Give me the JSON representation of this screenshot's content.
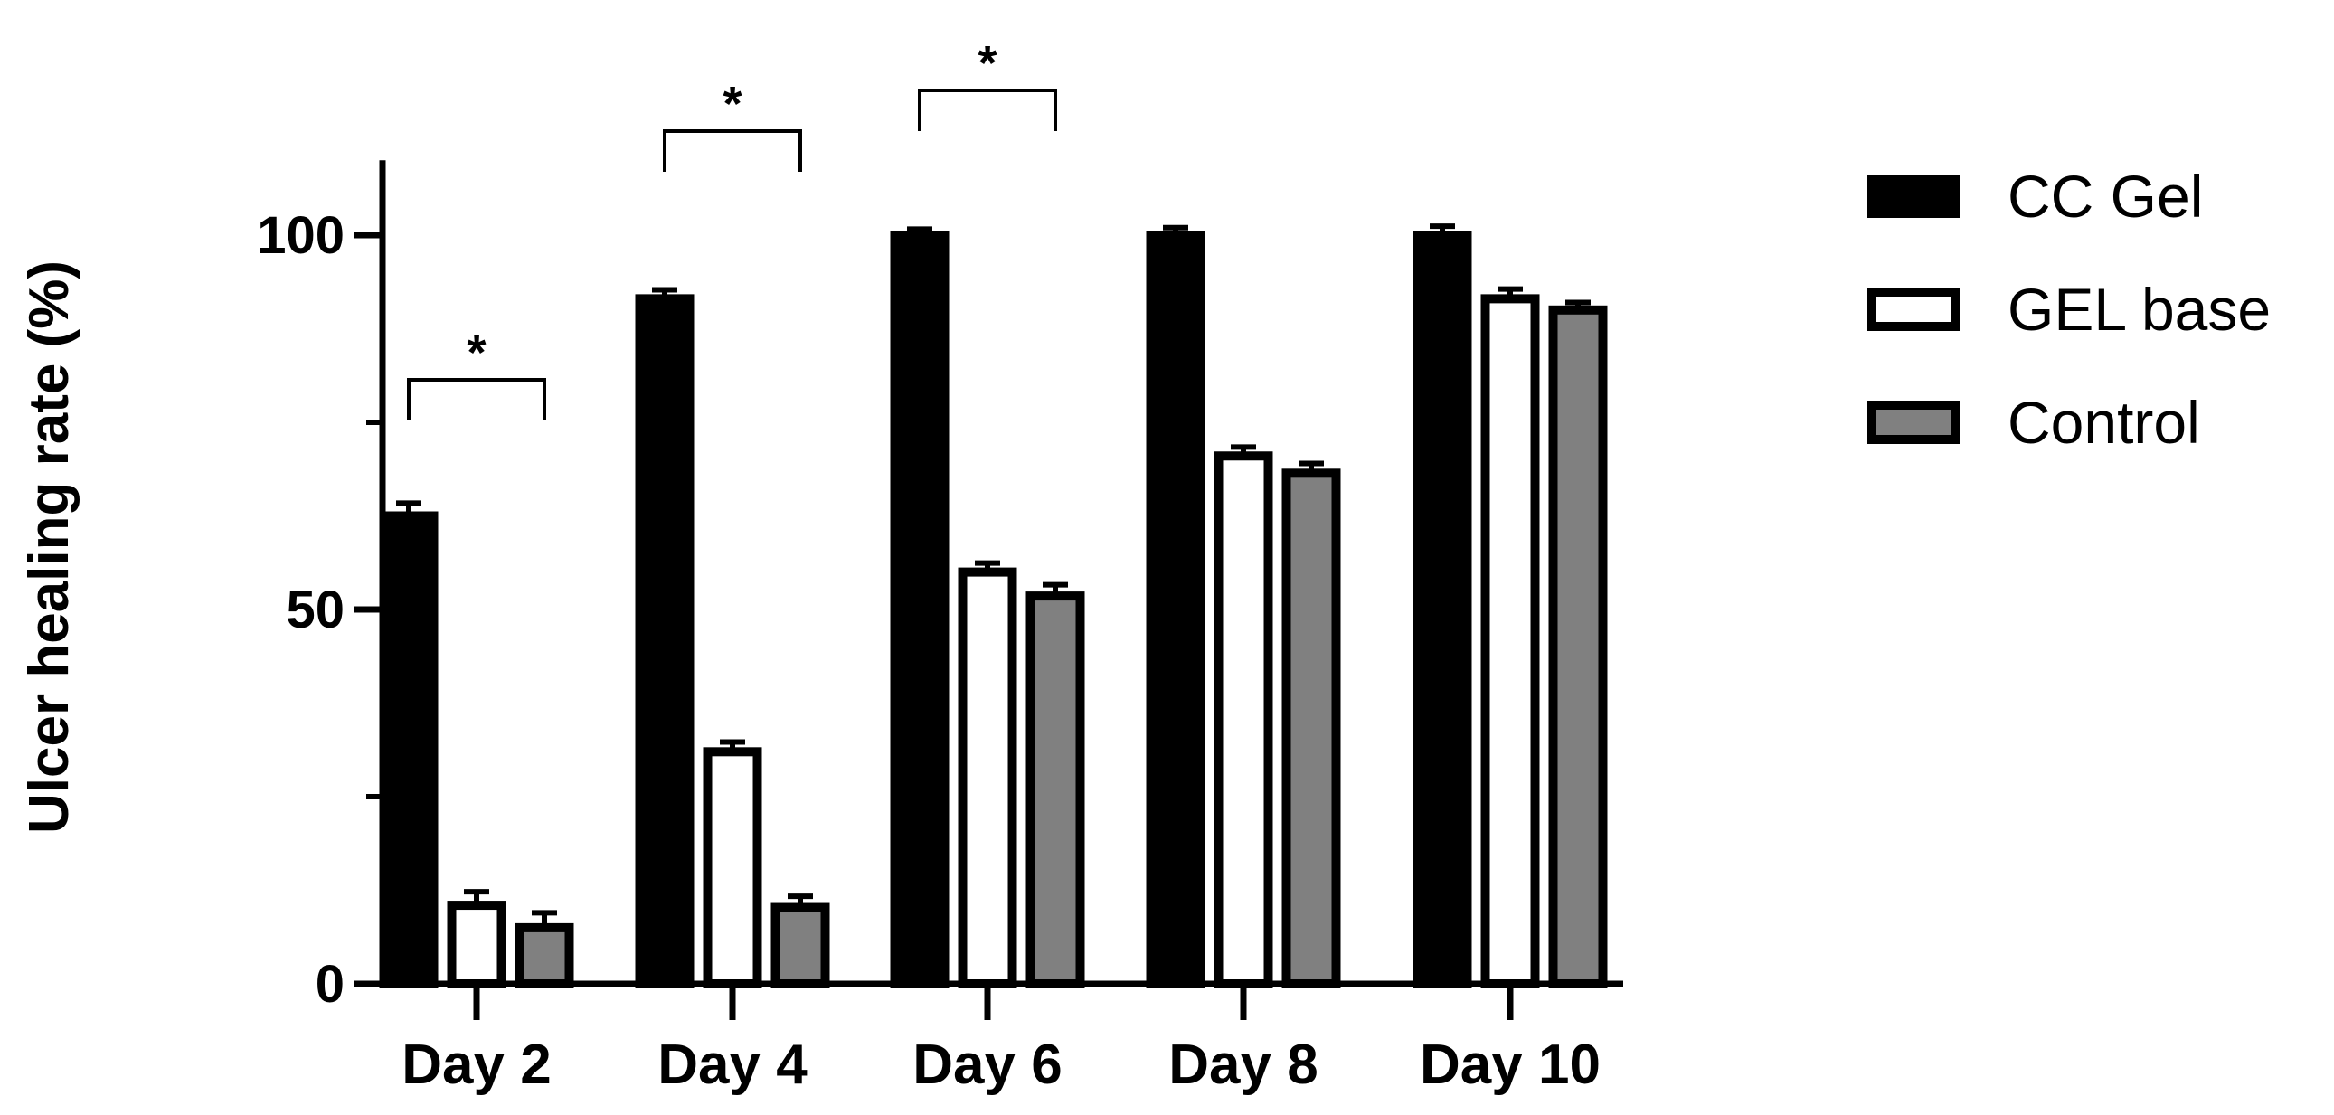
{
  "chart_data": {
    "type": "bar",
    "title": "",
    "xlabel": "",
    "ylabel": "Ulcer healing rate (%)",
    "ylim": [
      0,
      110
    ],
    "yticks": [
      0,
      50,
      100
    ],
    "grid": false,
    "legend_position": "right",
    "categories": [
      "Day 2",
      "Day 4",
      "Day 6",
      "Day 8",
      "Day 10"
    ],
    "series": [
      {
        "name": "CC Gel",
        "values": [
          62.5,
          91.5,
          100,
          100,
          100
        ],
        "errors": [
          1.7,
          1.2,
          0.8,
          1.0,
          1.2
        ],
        "fill": "#000000"
      },
      {
        "name": "GEL base",
        "values": [
          10.5,
          31,
          55,
          70.5,
          91.5
        ],
        "errors": [
          1.8,
          1.3,
          1.2,
          1.2,
          1.3
        ],
        "fill": "#ffffff"
      },
      {
        "name": "Control",
        "values": [
          7.5,
          10.2,
          51.8,
          68.2,
          90
        ],
        "errors": [
          2.0,
          1.5,
          1.5,
          1.3,
          1.0
        ],
        "fill": "#808080"
      }
    ],
    "significance": [
      {
        "category": "Day 2",
        "label": "*"
      },
      {
        "category": "Day 4",
        "label": "*"
      },
      {
        "category": "Day 6",
        "label": "*"
      }
    ]
  }
}
